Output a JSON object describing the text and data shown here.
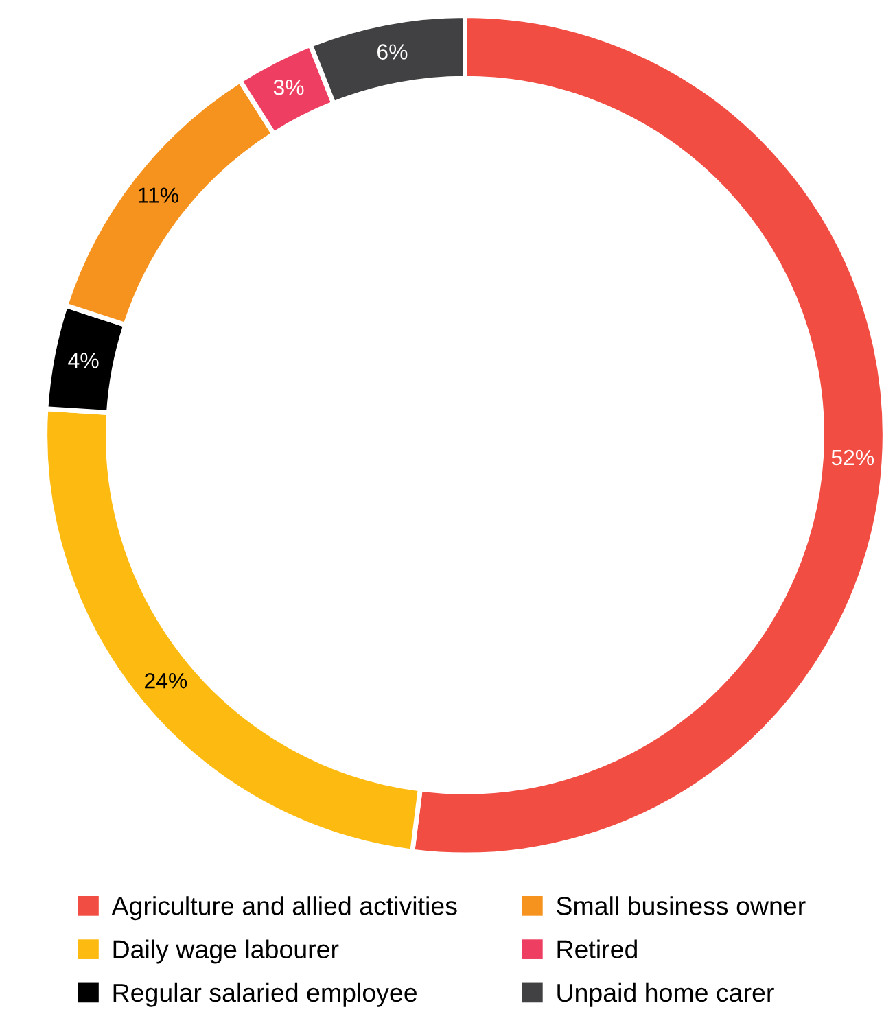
{
  "chart_data": {
    "type": "donut",
    "categories": [
      "Agriculture and allied activities",
      "Daily wage labourer",
      "Regular salaried employee",
      "Small business owner",
      "Retired",
      "Unpaid home carer"
    ],
    "values": [
      52,
      24,
      4,
      11,
      3,
      6
    ],
    "colors": [
      "#f24d42",
      "#fdbb12",
      "#000000",
      "#f6921e",
      "#ee3f62",
      "#414042"
    ],
    "value_labels": [
      "52%",
      "24%",
      "4%",
      "11%",
      "3%",
      "6%"
    ],
    "legend": "bottom"
  }
}
